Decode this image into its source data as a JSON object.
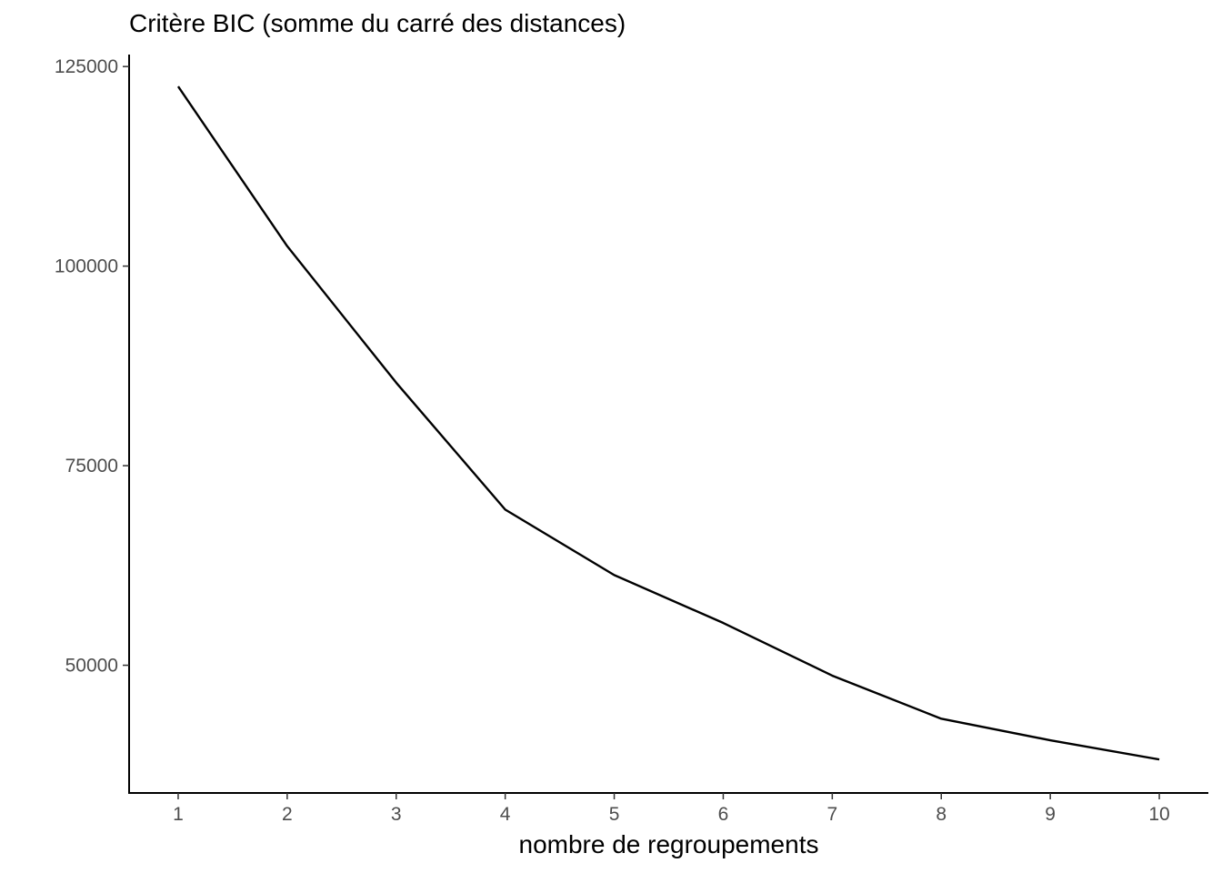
{
  "chart_data": {
    "type": "line",
    "title": "Critère BIC (somme du carré des distances)",
    "xlabel": "nombre de regroupements",
    "ylabel": "",
    "x": [
      1,
      2,
      3,
      4,
      5,
      6,
      7,
      8,
      9,
      10
    ],
    "series": [
      {
        "values": [
          122500,
          102500,
          85400,
          69500,
          61300,
          55300,
          48700,
          43300,
          40600,
          38200
        ]
      }
    ],
    "xticks": [
      "1",
      "2",
      "3",
      "4",
      "5",
      "6",
      "7",
      "8",
      "9",
      "10"
    ],
    "yticks": [
      "50000",
      "75000",
      "100000",
      "125000"
    ],
    "ylim": [
      34000,
      126500
    ],
    "xlim": [
      0.55,
      10.45
    ],
    "grid": false,
    "legend": "none",
    "line_color": "#000000"
  }
}
